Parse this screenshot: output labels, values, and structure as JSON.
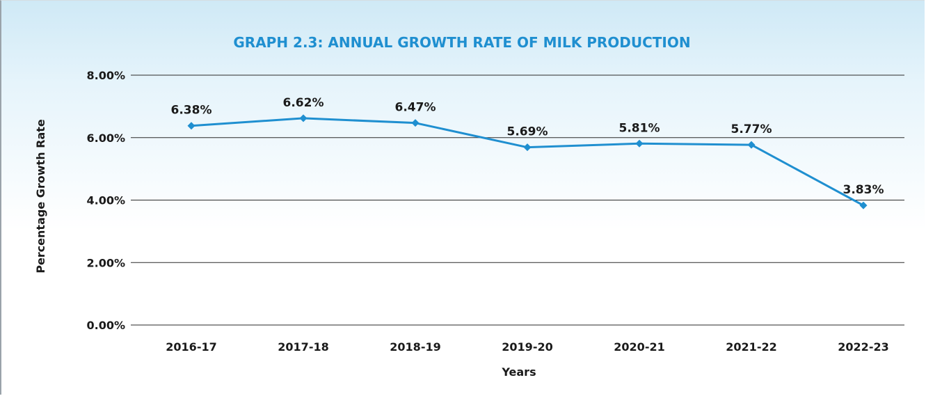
{
  "chart_data": {
    "type": "line",
    "title": "GRAPH 2.3: ANNUAL GROWTH RATE OF MILK PRODUCTION",
    "xlabel": "Years",
    "ylabel": "Percentage Growth Rate",
    "categories": [
      "2016-17",
      "2017-18",
      "2018-19",
      "2019-20",
      "2020-21",
      "2021-22",
      "2022-23"
    ],
    "series": [
      {
        "values": [
          6.38,
          6.62,
          6.47,
          5.69,
          5.81,
          5.77,
          3.83
        ],
        "labels": [
          "6.38%",
          "6.62%",
          "6.47%",
          "5.69%",
          "5.81%",
          "5.77%",
          "3.83%"
        ],
        "color": "#1f8fd0"
      }
    ],
    "ylim": [
      0,
      8
    ],
    "yticks": [
      0,
      2,
      4,
      6,
      8
    ],
    "ytick_labels": [
      "0.00%",
      "2.00%",
      "4.00%",
      "6.00%",
      "8.00%"
    ],
    "grid": "horizontal",
    "marker": "diamond",
    "legend": "none"
  },
  "colors": {
    "title": "#1f8fd0",
    "line": "#1f8fd0",
    "grid": "#2a2a2a",
    "background_top": "#cfe9f6"
  }
}
